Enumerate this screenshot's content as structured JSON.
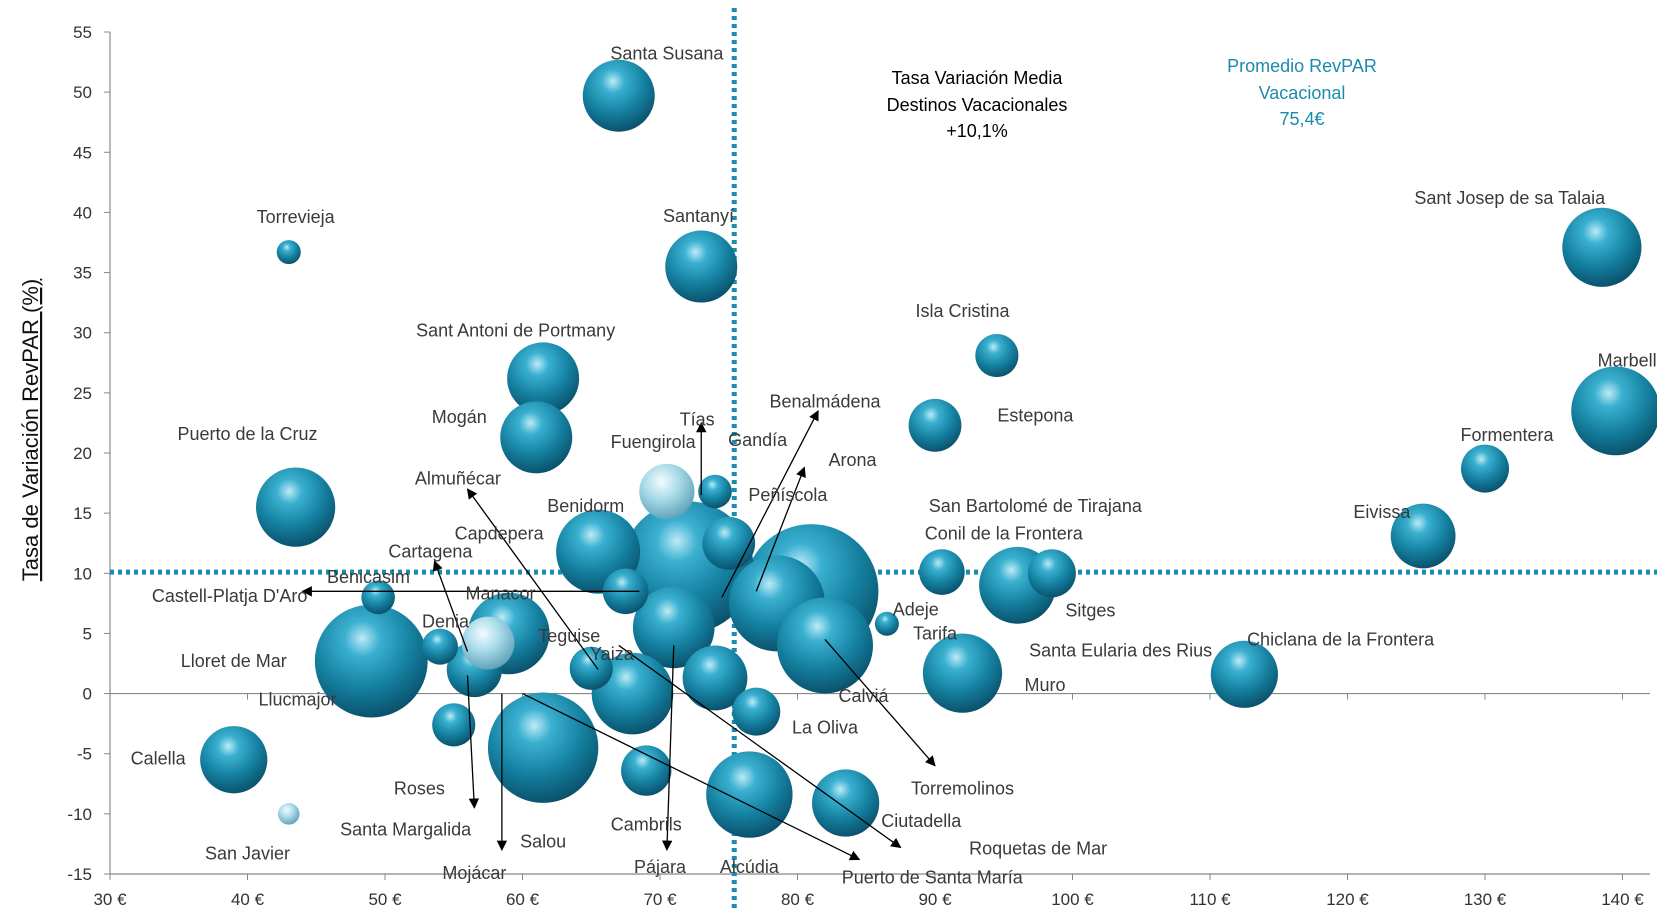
{
  "chart_data": {
    "type": "scatter",
    "xlabel": "",
    "ylabel": "Tasa de Variación RevPAR (%)",
    "xlim": [
      30,
      142
    ],
    "ylim": [
      -15,
      55
    ],
    "x_ticks": [
      "30 €",
      "40 €",
      "50 €",
      "60 €",
      "70 €",
      "80 €",
      "90 €",
      "100 €",
      "110 €",
      "120 €",
      "130 €",
      "140 €"
    ],
    "x_tick_values": [
      30,
      40,
      50,
      60,
      70,
      80,
      90,
      100,
      110,
      120,
      130,
      140
    ],
    "y_ticks": [
      "-15",
      "-10",
      "-5",
      "0",
      "5",
      "10",
      "15",
      "20",
      "25",
      "30",
      "35",
      "40",
      "45",
      "50",
      "55"
    ],
    "y_tick_values": [
      -15,
      -10,
      -5,
      0,
      5,
      10,
      15,
      20,
      25,
      30,
      35,
      40,
      45,
      50,
      55
    ],
    "reference_lines": {
      "x": {
        "value": 75.4,
        "label_lines": [
          "Promedio RevPAR",
          "Vacacional",
          "75,4€"
        ]
      },
      "y": {
        "value": 10.1,
        "label_lines": [
          "Tasa Variación Media",
          "Destinos Vacacionales",
          "+10,1%"
        ]
      }
    },
    "colors": {
      "bubble": "#1a8cad",
      "bubble_dark": "#0b5570",
      "bubble_highlight": "#cdeef8",
      "reference": "#1a8cad",
      "axis": "#888888"
    },
    "points": [
      {
        "name": "Santa Susana",
        "x": 67,
        "y": 49.7,
        "size": 3.0
      },
      {
        "name": "Torrevieja",
        "x": 43,
        "y": 36.7,
        "size": 1.0
      },
      {
        "name": "Santanyí",
        "x": 73,
        "y": 35.5,
        "size": 3.0
      },
      {
        "name": "Sant Josep de sa Talaia",
        "x": 138.5,
        "y": 37.1,
        "size": 3.3
      },
      {
        "name": "Isla Cristina",
        "x": 94.5,
        "y": 28.1,
        "size": 1.8
      },
      {
        "name": "Marbella",
        "x": 139.5,
        "y": 23.5,
        "size": 3.7
      },
      {
        "name": "Sant Antoni de Portmany",
        "x": 61.5,
        "y": 26.2,
        "size": 3.0
      },
      {
        "name": "Mogán",
        "x": 61,
        "y": 21.3,
        "size": 3.0
      },
      {
        "name": "Estepona",
        "x": 90,
        "y": 22.3,
        "size": 2.2
      },
      {
        "name": "Formentera",
        "x": 130,
        "y": 18.7,
        "size": 2.0
      },
      {
        "name": "Puerto de la Cruz",
        "x": 43.5,
        "y": 15.5,
        "size": 3.3
      },
      {
        "name": "Fuengirola",
        "x": 70.5,
        "y": 16.8,
        "size": 2.3,
        "highlight": true
      },
      {
        "name": "Gandía",
        "x": 74,
        "y": 16.8,
        "size": 1.4
      },
      {
        "name": "Eivissa",
        "x": 125.5,
        "y": 13.1,
        "size": 2.7
      },
      {
        "name": "Benidorm",
        "x": 65.5,
        "y": 11.8,
        "size": 3.5
      },
      {
        "name": "Peñíscola",
        "x": 75,
        "y": 12.5,
        "size": 2.2
      },
      {
        "name": "San Bartolomé de Tirajana",
        "x": 81,
        "y": 8.5,
        "size": 5.6
      },
      {
        "name": "Benalmádena",
        "x": 72,
        "y": 10.5,
        "size": 5.5
      },
      {
        "name": "Conil de la Frontera",
        "x": 90.5,
        "y": 10.1,
        "size": 1.9
      },
      {
        "name": "Sitges",
        "x": 98.5,
        "y": 10.0,
        "size": 2.0
      },
      {
        "name": "Arona",
        "x": 78.5,
        "y": 7.5,
        "size": 4.0
      },
      {
        "name": "Capdepera",
        "x": 67.5,
        "y": 8.5,
        "size": 1.9
      },
      {
        "name": "Santa Eularia des Rius",
        "x": 96,
        "y": 9.0,
        "size": 3.2
      },
      {
        "name": "Adeje",
        "x": 86.5,
        "y": 5.8,
        "size": 1.0
      },
      {
        "name": "Benicasim",
        "x": 49.5,
        "y": 8.0,
        "size": 1.4
      },
      {
        "name": "Manacor",
        "x": 59,
        "y": 5.0,
        "size": 3.4
      },
      {
        "name": "Denia",
        "x": 57.5,
        "y": 4.2,
        "size": 2.2,
        "highlight": true
      },
      {
        "name": "Cartagena",
        "x": 54,
        "y": 3.9,
        "size": 1.5
      },
      {
        "name": "Lloret de Mar",
        "x": 49,
        "y": 2.7,
        "size": 4.7
      },
      {
        "name": "Llucmajor",
        "x": 56.5,
        "y": 2.0,
        "size": 2.3
      },
      {
        "name": "Teguise",
        "x": 71,
        "y": 5.5,
        "size": 3.4
      },
      {
        "name": "Yaiza",
        "x": 65,
        "y": 2.1,
        "size": 1.8
      },
      {
        "name": "Almuñécar",
        "x": 68,
        "y": 0.0,
        "size": 3.4
      },
      {
        "name": "Tías",
        "x": 74,
        "y": 1.3,
        "size": 2.7
      },
      {
        "name": "Tarifa",
        "x": 92,
        "y": 1.7,
        "size": 3.3
      },
      {
        "name": "Chiclana de la Frontera",
        "x": 112.5,
        "y": 1.6,
        "size": 2.8
      },
      {
        "name": "Calviá",
        "x": 82,
        "y": 4.0,
        "size": 4.0
      },
      {
        "name": "La Oliva",
        "x": 77,
        "y": -1.5,
        "size": 2.0
      },
      {
        "name": "Roses",
        "x": 55,
        "y": -2.6,
        "size": 1.8
      },
      {
        "name": "Calella",
        "x": 39,
        "y": -5.5,
        "size": 2.8
      },
      {
        "name": "Salou",
        "x": 61.5,
        "y": -4.5,
        "size": 4.6
      },
      {
        "name": "Cambrils",
        "x": 69,
        "y": -6.4,
        "size": 2.1
      },
      {
        "name": "Alcúdia",
        "x": 76.5,
        "y": -8.4,
        "size": 3.6
      },
      {
        "name": "Ciutadella",
        "x": 83.5,
        "y": -9.1,
        "size": 2.8
      },
      {
        "name": "San Javier",
        "x": 43,
        "y": -10.0,
        "size": 0.9,
        "highlight": true
      }
    ],
    "labels": [
      {
        "text": "Santa Susana",
        "x": 70.5,
        "y": 53.2,
        "anchor": "middle"
      },
      {
        "text": "Torrevieja",
        "x": 43.5,
        "y": 39.6,
        "anchor": "middle"
      },
      {
        "text": "Santanyí",
        "x": 72.8,
        "y": 39.7,
        "anchor": "middle"
      },
      {
        "text": "Sant Josep de sa Talaia",
        "x": 131.8,
        "y": 41.2,
        "anchor": "middle"
      },
      {
        "text": "Tasa Variación Media",
        "x": 98,
        "y": 0,
        "anchor": "middle"
      },
      {
        "text": "Isla Cristina",
        "x": 92,
        "y": 31.8,
        "anchor": "middle"
      },
      {
        "text": "Marbella",
        "x": 140.7,
        "y": 27.7,
        "anchor": "middle"
      },
      {
        "text": "Sant Antoni de Portmany",
        "x": 59.5,
        "y": 30.2,
        "anchor": "middle"
      },
      {
        "text": "Mogán",
        "x": 55.4,
        "y": 23.0,
        "anchor": "middle"
      },
      {
        "text": "Benalmádena",
        "x": 82,
        "y": 24.3,
        "anchor": "middle"
      },
      {
        "text": "Tías",
        "x": 72.7,
        "y": 22.8,
        "anchor": "middle"
      },
      {
        "text": "Estepona",
        "x": 97.3,
        "y": 23.1,
        "anchor": "middle"
      },
      {
        "text": "Formentera",
        "x": 131.6,
        "y": 21.5,
        "anchor": "middle"
      },
      {
        "text": "Puerto de la Cruz",
        "x": 40,
        "y": 21.6,
        "anchor": "middle"
      },
      {
        "text": "Fuengirola",
        "x": 69.5,
        "y": 20.9,
        "anchor": "middle"
      },
      {
        "text": "Gandía",
        "x": 77.1,
        "y": 21.1,
        "anchor": "middle"
      },
      {
        "text": "Almuñécar",
        "x": 55.3,
        "y": 17.9,
        "anchor": "middle"
      },
      {
        "text": "Arona",
        "x": 84,
        "y": 19.4,
        "anchor": "middle"
      },
      {
        "text": "Peñíscola",
        "x": 79.3,
        "y": 16.5,
        "anchor": "middle"
      },
      {
        "text": "San Bartolomé de Tirajana",
        "x": 97.3,
        "y": 15.6,
        "anchor": "middle"
      },
      {
        "text": "Benidorm",
        "x": 64.6,
        "y": 15.6,
        "anchor": "middle"
      },
      {
        "text": "Eivissa",
        "x": 122.5,
        "y": 15.1,
        "anchor": "middle"
      },
      {
        "text": "Capdepera",
        "x": 58.3,
        "y": 13.3,
        "anchor": "middle"
      },
      {
        "text": "Conil de la Frontera",
        "x": 95,
        "y": 13.3,
        "anchor": "middle"
      },
      {
        "text": "Cartagena",
        "x": 53.3,
        "y": 11.8,
        "anchor": "middle"
      },
      {
        "text": "Benicasim",
        "x": 48.8,
        "y": 9.7,
        "anchor": "middle"
      },
      {
        "text": "Manacor",
        "x": 58.4,
        "y": 8.3,
        "anchor": "middle"
      },
      {
        "text": "Castell-Platja D'Aro",
        "x": 38.7,
        "y": 8.1,
        "anchor": "middle"
      },
      {
        "text": "Adeje",
        "x": 88.6,
        "y": 7.0,
        "anchor": "middle"
      },
      {
        "text": "Sitges",
        "x": 101.3,
        "y": 6.9,
        "anchor": "middle"
      },
      {
        "text": "Denia",
        "x": 54.4,
        "y": 6.0,
        "anchor": "middle"
      },
      {
        "text": "Teguise",
        "x": 63.4,
        "y": 4.8,
        "anchor": "middle"
      },
      {
        "text": "Tarifa",
        "x": 90,
        "y": 5.0,
        "anchor": "middle"
      },
      {
        "text": "Chiclana de la Frontera",
        "x": 119.5,
        "y": 4.5,
        "anchor": "middle"
      },
      {
        "text": "Yaiza",
        "x": 66.5,
        "y": 3.3,
        "anchor": "middle"
      },
      {
        "text": "Santa Eularia des Rius",
        "x": 103.5,
        "y": 3.6,
        "anchor": "middle"
      },
      {
        "text": "Lloret de Mar",
        "x": 39,
        "y": 2.7,
        "anchor": "middle"
      },
      {
        "text": "Muro",
        "x": 98,
        "y": 0.7,
        "anchor": "middle"
      },
      {
        "text": "Calviá",
        "x": 84.8,
        "y": -0.2,
        "anchor": "middle"
      },
      {
        "text": "Llucmajor",
        "x": 40.8,
        "y": -0.5,
        "anchor": "start"
      },
      {
        "text": "La Oliva",
        "x": 82,
        "y": -2.8,
        "anchor": "middle"
      },
      {
        "text": "Calella",
        "x": 33.5,
        "y": -5.4,
        "anchor": "middle"
      },
      {
        "text": "Torremolinos",
        "x": 92,
        "y": -7.9,
        "anchor": "middle"
      },
      {
        "text": "Roses",
        "x": 52.5,
        "y": -7.9,
        "anchor": "middle"
      },
      {
        "text": "Cambrils",
        "x": 69,
        "y": -10.9,
        "anchor": "middle"
      },
      {
        "text": "Santa Margalida",
        "x": 51.5,
        "y": -11.3,
        "anchor": "middle"
      },
      {
        "text": "Ciutadella",
        "x": 89,
        "y": -10.6,
        "anchor": "middle"
      },
      {
        "text": "San Javier",
        "x": 40,
        "y": -13.3,
        "anchor": "middle"
      },
      {
        "text": "Salou",
        "x": 61.5,
        "y": -12.3,
        "anchor": "middle"
      },
      {
        "text": "Roquetas de Mar",
        "x": 97.5,
        "y": -12.9,
        "anchor": "middle"
      },
      {
        "text": "Pájara",
        "x": 70,
        "y": -14.4,
        "anchor": "middle"
      },
      {
        "text": "Alcúdia",
        "x": 76.5,
        "y": -14.4,
        "anchor": "middle"
      },
      {
        "text": "Mojácar",
        "x": 56.5,
        "y": -14.9,
        "anchor": "middle"
      },
      {
        "text": "Puerto de Santa María",
        "x": 89.8,
        "y": -15.3,
        "anchor": "middle"
      }
    ],
    "arrows": [
      {
        "x1": 73,
        "y1": 16.5,
        "x2": 73,
        "y2": 22.5
      },
      {
        "x1": 74.5,
        "y1": 8.0,
        "x2": 81.5,
        "y2": 23.5
      },
      {
        "x1": 77,
        "y1": 8.5,
        "x2": 80.5,
        "y2": 18.8
      },
      {
        "x1": 65.5,
        "y1": 2.0,
        "x2": 56,
        "y2": 17.0
      },
      {
        "x1": 56,
        "y1": 3.5,
        "x2": 53.6,
        "y2": 11.0
      },
      {
        "x1": 68.5,
        "y1": 8.5,
        "x2": 44,
        "y2": 8.5
      },
      {
        "x1": 82,
        "y1": 4.5,
        "x2": 90,
        "y2": -6.0
      },
      {
        "x1": 67,
        "y1": 4.0,
        "x2": 87.5,
        "y2": -12.8
      },
      {
        "x1": 71,
        "y1": 4.0,
        "x2": 70.5,
        "y2": -13.0
      },
      {
        "x1": 56,
        "y1": 1.5,
        "x2": 56.5,
        "y2": -9.5
      },
      {
        "x1": 58.5,
        "y1": 0.0,
        "x2": 58.5,
        "y2": -13.0
      },
      {
        "x1": 60,
        "y1": 0.0,
        "x2": 84.5,
        "y2": -13.8
      }
    ]
  },
  "annotation_center": [
    "Tasa Variación Media",
    "Destinos Vacacionales",
    "+10,1%"
  ],
  "annotation_right": [
    "Promedio RevPAR",
    "Vacacional",
    "75,4€"
  ]
}
